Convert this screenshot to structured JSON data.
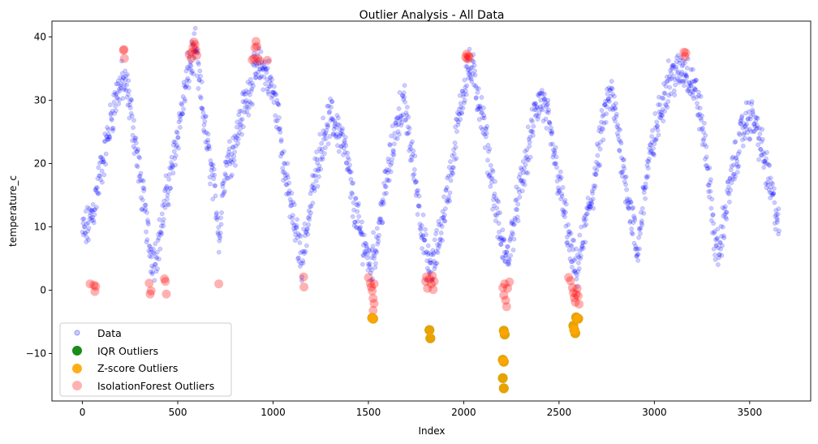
{
  "chart_data": {
    "type": "scatter",
    "title": "Outlier Analysis - All Data",
    "xlabel": "Index",
    "ylabel": "temperature_c",
    "xlim": [
      -160,
      3820
    ],
    "ylim": [
      -17.5,
      42.5
    ],
    "xticks": [
      0,
      500,
      1000,
      1500,
      2000,
      2500,
      3000,
      3500
    ],
    "yticks": [
      -10,
      0,
      10,
      20,
      30,
      40
    ],
    "grid": false,
    "legend_position": "lower-left",
    "legend": [
      {
        "name": "Data",
        "color": "#0000ff",
        "alpha": 0.2,
        "marker": "small-circle"
      },
      {
        "name": "IQR Outliers",
        "color": "#008000",
        "alpha": 0.9,
        "marker": "large-circle"
      },
      {
        "name": "Z-score Outliers",
        "color": "#ffa500",
        "alpha": 0.9,
        "marker": "large-circle"
      },
      {
        "name": "IsolationForest Outliers",
        "color": "#ff0000",
        "alpha": 0.3,
        "marker": "large-circle"
      }
    ],
    "data_trend": [
      [
        0,
        9
      ],
      [
        30,
        10
      ],
      [
        60,
        13
      ],
      [
        90,
        18
      ],
      [
        120,
        22
      ],
      [
        150,
        27
      ],
      [
        180,
        31
      ],
      [
        210,
        33
      ],
      [
        240,
        31
      ],
      [
        270,
        25
      ],
      [
        300,
        18
      ],
      [
        330,
        12
      ],
      [
        355,
        6
      ],
      [
        380,
        5
      ],
      [
        410,
        9
      ],
      [
        440,
        15
      ],
      [
        470,
        19
      ],
      [
        500,
        25
      ],
      [
        530,
        30
      ],
      [
        560,
        35
      ],
      [
        590,
        38
      ],
      [
        620,
        31
      ],
      [
        650,
        24
      ],
      [
        680,
        18
      ],
      [
        700,
        14
      ],
      [
        720,
        8
      ],
      [
        740,
        18
      ],
      [
        770,
        21
      ],
      [
        800,
        23
      ],
      [
        830,
        27
      ],
      [
        860,
        30
      ],
      [
        890,
        33
      ],
      [
        920,
        35
      ],
      [
        950,
        35
      ],
      [
        980,
        33
      ],
      [
        1000,
        31
      ],
      [
        1030,
        27
      ],
      [
        1060,
        19
      ],
      [
        1090,
        14
      ],
      [
        1120,
        9
      ],
      [
        1150,
        5
      ],
      [
        1180,
        10
      ],
      [
        1210,
        16
      ],
      [
        1240,
        21
      ],
      [
        1270,
        25
      ],
      [
        1300,
        27
      ],
      [
        1330,
        26
      ],
      [
        1360,
        24
      ],
      [
        1390,
        20
      ],
      [
        1420,
        14
      ],
      [
        1450,
        10
      ],
      [
        1480,
        7
      ],
      [
        1510,
        4
      ],
      [
        1540,
        7
      ],
      [
        1570,
        13
      ],
      [
        1600,
        18
      ],
      [
        1630,
        23
      ],
      [
        1660,
        28
      ],
      [
        1690,
        29
      ],
      [
        1720,
        23
      ],
      [
        1750,
        17
      ],
      [
        1780,
        10
      ],
      [
        1810,
        4
      ],
      [
        1840,
        4
      ],
      [
        1870,
        8
      ],
      [
        1900,
        13
      ],
      [
        1930,
        18
      ],
      [
        1960,
        24
      ],
      [
        1990,
        30
      ],
      [
        2020,
        35
      ],
      [
        2050,
        34
      ],
      [
        2080,
        30
      ],
      [
        2110,
        25
      ],
      [
        2140,
        19
      ],
      [
        2170,
        13
      ],
      [
        2200,
        7
      ],
      [
        2230,
        5
      ],
      [
        2260,
        10
      ],
      [
        2290,
        15
      ],
      [
        2320,
        19
      ],
      [
        2350,
        24
      ],
      [
        2380,
        29
      ],
      [
        2410,
        30
      ],
      [
        2440,
        27
      ],
      [
        2470,
        22
      ],
      [
        2500,
        17
      ],
      [
        2530,
        12
      ],
      [
        2560,
        6
      ],
      [
        2590,
        3
      ],
      [
        2620,
        7
      ],
      [
        2650,
        12
      ],
      [
        2680,
        16
      ],
      [
        2710,
        22
      ],
      [
        2740,
        28
      ],
      [
        2770,
        31
      ],
      [
        2800,
        27
      ],
      [
        2830,
        21
      ],
      [
        2860,
        15
      ],
      [
        2890,
        10
      ],
      [
        2910,
        5
      ],
      [
        2940,
        14
      ],
      [
        2970,
        20
      ],
      [
        3000,
        24
      ],
      [
        3030,
        28
      ],
      [
        3060,
        32
      ],
      [
        3090,
        34
      ],
      [
        3120,
        34
      ],
      [
        3150,
        35
      ],
      [
        3180,
        34
      ],
      [
        3210,
        32
      ],
      [
        3240,
        28
      ],
      [
        3270,
        22
      ],
      [
        3300,
        13
      ],
      [
        3320,
        7
      ],
      [
        3340,
        6
      ],
      [
        3370,
        12
      ],
      [
        3400,
        17
      ],
      [
        3430,
        21
      ],
      [
        3460,
        25
      ],
      [
        3490,
        27
      ],
      [
        3520,
        27
      ],
      [
        3550,
        24
      ],
      [
        3580,
        20
      ],
      [
        3610,
        16
      ],
      [
        3640,
        12
      ],
      [
        3655,
        10
      ]
    ],
    "iqr_outliers": [
      [
        1520,
        -4.4
      ],
      [
        1525,
        -4.5
      ],
      [
        1820,
        -6.3
      ],
      [
        1825,
        -7.6
      ],
      [
        2210,
        -6.4
      ],
      [
        2215,
        -7.0
      ],
      [
        2205,
        -11.0
      ],
      [
        2210,
        -11.3
      ],
      [
        2205,
        -13.9
      ],
      [
        2210,
        -15.5
      ],
      [
        2575,
        -5.6
      ],
      [
        2580,
        -6.3
      ],
      [
        2590,
        -4.3
      ],
      [
        2600,
        -4.5
      ],
      [
        2585,
        -6.8
      ]
    ],
    "zscore_outliers": [
      [
        1520,
        -4.4
      ],
      [
        1525,
        -4.5
      ],
      [
        1820,
        -6.3
      ],
      [
        1825,
        -7.6
      ],
      [
        2210,
        -6.4
      ],
      [
        2215,
        -7.0
      ],
      [
        2205,
        -11.0
      ],
      [
        2210,
        -11.3
      ],
      [
        2205,
        -13.9
      ],
      [
        2210,
        -15.5
      ],
      [
        2575,
        -5.6
      ],
      [
        2580,
        -6.3
      ],
      [
        2590,
        -4.3
      ],
      [
        2600,
        -4.5
      ],
      [
        2585,
        -6.8
      ]
    ],
    "isolationforest_outliers": [
      [
        40,
        1.0
      ],
      [
        60,
        0.8
      ],
      [
        65,
        -0.2
      ],
      [
        70,
        0.6
      ],
      [
        215,
        37.9
      ],
      [
        220,
        36.6
      ],
      [
        218,
        38.0
      ],
      [
        350,
        1.1
      ],
      [
        355,
        -0.6
      ],
      [
        360,
        -0.1
      ],
      [
        430,
        1.8
      ],
      [
        435,
        1.4
      ],
      [
        440,
        -0.6
      ],
      [
        560,
        37.3
      ],
      [
        570,
        36.6
      ],
      [
        575,
        37.6
      ],
      [
        580,
        38.4
      ],
      [
        585,
        39.2
      ],
      [
        590,
        38.8
      ],
      [
        595,
        37.9
      ],
      [
        600,
        37.1
      ],
      [
        715,
        1.0
      ],
      [
        890,
        36.4
      ],
      [
        900,
        36.6
      ],
      [
        905,
        38.3
      ],
      [
        910,
        39.3
      ],
      [
        915,
        38.5
      ],
      [
        920,
        36.6
      ],
      [
        930,
        36.2
      ],
      [
        970,
        36.3
      ],
      [
        1160,
        2.1
      ],
      [
        1162,
        0.5
      ],
      [
        1500,
        2.0
      ],
      [
        1510,
        1.1
      ],
      [
        1515,
        0.5
      ],
      [
        1520,
        -0.1
      ],
      [
        1525,
        -1.3
      ],
      [
        1530,
        -2.1
      ],
      [
        1525,
        -3.2
      ],
      [
        1530,
        1.0
      ],
      [
        1800,
        1.4
      ],
      [
        1805,
        2.1
      ],
      [
        1810,
        0.3
      ],
      [
        1820,
        1.8
      ],
      [
        1830,
        1.0
      ],
      [
        1835,
        2.3
      ],
      [
        1840,
        0.1
      ],
      [
        1845,
        1.4
      ],
      [
        2010,
        36.8
      ],
      [
        2015,
        37.3
      ],
      [
        2020,
        36.5
      ],
      [
        2025,
        37.0
      ],
      [
        2030,
        36.8
      ],
      [
        2205,
        0.4
      ],
      [
        2210,
        -0.8
      ],
      [
        2215,
        1.0
      ],
      [
        2220,
        -1.6
      ],
      [
        2225,
        -2.6
      ],
      [
        2230,
        0.3
      ],
      [
        2240,
        1.3
      ],
      [
        2550,
        2.0
      ],
      [
        2560,
        1.5
      ],
      [
        2570,
        0.4
      ],
      [
        2575,
        -0.4
      ],
      [
        2580,
        -1.2
      ],
      [
        2585,
        -1.9
      ],
      [
        2590,
        -0.6
      ],
      [
        2595,
        0.3
      ],
      [
        2600,
        -0.9
      ],
      [
        2605,
        -2.2
      ],
      [
        3155,
        37.6
      ],
      [
        3160,
        36.9
      ],
      [
        3165,
        37.5
      ]
    ]
  }
}
